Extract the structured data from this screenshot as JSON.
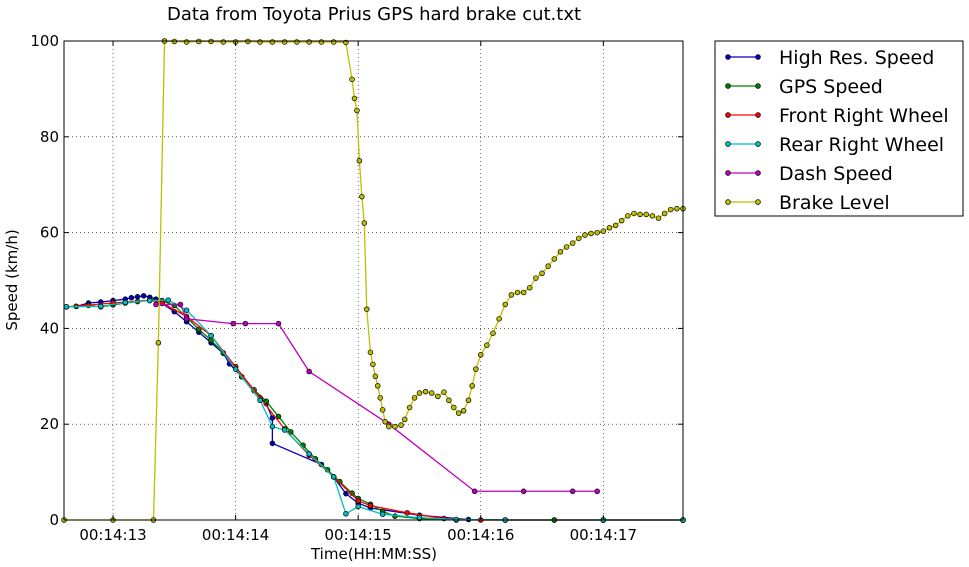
{
  "chart_data": {
    "type": "line",
    "title": "Data from Toyota Prius GPS hard brake cut.txt",
    "xlabel": "Time(HH:MM:SS)",
    "ylabel": "Speed (km/h)",
    "x_offset_label": "00:14:",
    "xlim": [
      12.6,
      17.65
    ],
    "ylim": [
      0,
      100
    ],
    "xticks": [
      13,
      14,
      15,
      16,
      17
    ],
    "xtick_labels": [
      "00:14:13",
      "00:14:14",
      "00:14:15",
      "00:14:16",
      "00:14:17"
    ],
    "yticks": [
      0,
      20,
      40,
      60,
      80,
      100
    ],
    "ytick_labels": [
      "0",
      "20",
      "40",
      "60",
      "80",
      "100"
    ],
    "grid": true,
    "legend_position": "outside-right",
    "series": [
      {
        "name": "High Res. Speed",
        "color": "#0000bf",
        "points": [
          [
            12.7,
            44.6
          ],
          [
            12.8,
            45.3
          ],
          [
            12.9,
            45.5
          ],
          [
            13.0,
            45.8
          ],
          [
            13.1,
            46.1
          ],
          [
            13.15,
            46.4
          ],
          [
            13.2,
            46.6
          ],
          [
            13.25,
            46.8
          ],
          [
            13.3,
            46.5
          ],
          [
            13.35,
            46.1
          ],
          [
            13.4,
            45.2
          ],
          [
            13.5,
            43.5
          ],
          [
            13.6,
            41.4
          ],
          [
            13.7,
            39.2
          ],
          [
            13.8,
            37.0
          ],
          [
            13.9,
            34.8
          ],
          [
            13.95,
            32.6
          ],
          [
            14.05,
            29.9
          ],
          [
            14.15,
            27.0
          ],
          [
            14.25,
            24.3
          ],
          [
            14.3,
            21.3
          ],
          [
            14.3,
            16.0
          ],
          [
            14.7,
            11.6
          ],
          [
            14.8,
            9.0
          ],
          [
            14.9,
            5.5
          ],
          [
            15.0,
            3.5
          ],
          [
            15.1,
            2.5
          ],
          [
            15.5,
            1.0
          ],
          [
            15.9,
            0.1
          ],
          [
            16.2,
            0.0
          ],
          [
            16.6,
            0.0
          ],
          [
            17.0,
            0.0
          ],
          [
            17.65,
            0.0
          ]
        ]
      },
      {
        "name": "GPS Speed",
        "color": "#008000",
        "points": [
          [
            12.62,
            44.5
          ],
          [
            12.7,
            44.6
          ],
          [
            12.8,
            44.8
          ],
          [
            12.9,
            44.5
          ],
          [
            13.0,
            44.9
          ],
          [
            13.1,
            45.3
          ],
          [
            13.2,
            45.6
          ],
          [
            13.3,
            45.9
          ],
          [
            13.4,
            45.8
          ],
          [
            13.5,
            44.8
          ],
          [
            13.6,
            42.3
          ],
          [
            13.7,
            39.8
          ],
          [
            13.8,
            37.5
          ],
          [
            13.9,
            34.9
          ],
          [
            14.0,
            32.0
          ],
          [
            14.05,
            29.9
          ],
          [
            14.15,
            27.2
          ],
          [
            14.25,
            24.8
          ],
          [
            14.35,
            21.6
          ],
          [
            14.45,
            18.4
          ],
          [
            14.55,
            15.6
          ],
          [
            14.65,
            12.8
          ],
          [
            14.75,
            10.5
          ],
          [
            14.85,
            8.0
          ],
          [
            14.95,
            5.6
          ],
          [
            15.0,
            4.5
          ],
          [
            15.1,
            3.3
          ],
          [
            15.2,
            1.8
          ],
          [
            15.3,
            0.8
          ],
          [
            15.5,
            0.3
          ],
          [
            15.8,
            0.0
          ],
          [
            16.2,
            0.0
          ],
          [
            16.6,
            0.0
          ],
          [
            17.0,
            0.0
          ],
          [
            17.65,
            0.0
          ]
        ]
      },
      {
        "name": "Front Right Wheel",
        "color": "#ff0000",
        "points": [
          [
            12.62,
            44.5
          ],
          [
            13.0,
            45.3
          ],
          [
            13.3,
            45.9
          ],
          [
            13.4,
            45.3
          ],
          [
            13.6,
            42.5
          ],
          [
            13.8,
            38.5
          ],
          [
            14.0,
            32.0
          ],
          [
            14.2,
            25.5
          ],
          [
            14.4,
            19.0
          ],
          [
            14.6,
            13.5
          ],
          [
            14.8,
            9.0
          ],
          [
            15.0,
            4.0
          ],
          [
            15.1,
            3.0
          ],
          [
            15.4,
            1.5
          ],
          [
            15.7,
            0.3
          ],
          [
            16.0,
            0.0
          ],
          [
            17.0,
            0.0
          ],
          [
            17.65,
            0.0
          ]
        ]
      },
      {
        "name": "Rear Right Wheel",
        "color": "#00bfbf",
        "points": [
          [
            12.62,
            44.5
          ],
          [
            12.9,
            44.6
          ],
          [
            13.1,
            45.4
          ],
          [
            13.3,
            45.8
          ],
          [
            13.45,
            45.9
          ],
          [
            13.6,
            43.8
          ],
          [
            13.8,
            38.5
          ],
          [
            14.0,
            31.5
          ],
          [
            14.2,
            25.0
          ],
          [
            14.3,
            19.5
          ],
          [
            14.4,
            18.8
          ],
          [
            14.6,
            13.8
          ],
          [
            14.8,
            9.0
          ],
          [
            14.9,
            1.3
          ],
          [
            15.0,
            2.8
          ],
          [
            15.2,
            1.2
          ],
          [
            15.5,
            0.5
          ],
          [
            15.8,
            0.1
          ],
          [
            16.2,
            0.0
          ],
          [
            17.0,
            0.0
          ],
          [
            17.65,
            0.0
          ]
        ]
      },
      {
        "name": "Dash Speed",
        "color": "#bf00bf",
        "points": [
          [
            13.35,
            45.0
          ],
          [
            13.55,
            45.0
          ],
          [
            13.6,
            42.0
          ],
          [
            13.98,
            41.0
          ],
          [
            14.08,
            41.0
          ],
          [
            14.35,
            41.0
          ],
          [
            14.6,
            31.0
          ],
          [
            15.25,
            20.0
          ],
          [
            15.95,
            6.0
          ],
          [
            16.35,
            6.0
          ],
          [
            16.75,
            6.0
          ],
          [
            16.95,
            6.0
          ]
        ]
      },
      {
        "name": "Brake Level",
        "color": "#bfbf00",
        "points": [
          [
            12.6,
            0.0
          ],
          [
            13.0,
            0.0
          ],
          [
            13.33,
            0.0
          ],
          [
            13.37,
            37.0
          ],
          [
            13.42,
            100.0
          ],
          [
            13.5,
            99.9
          ],
          [
            13.6,
            99.8
          ],
          [
            13.7,
            99.9
          ],
          [
            13.8,
            99.9
          ],
          [
            13.9,
            99.8
          ],
          [
            14.0,
            99.8
          ],
          [
            14.1,
            99.9
          ],
          [
            14.2,
            99.8
          ],
          [
            14.3,
            99.8
          ],
          [
            14.4,
            99.8
          ],
          [
            14.5,
            99.8
          ],
          [
            14.6,
            99.8
          ],
          [
            14.7,
            99.8
          ],
          [
            14.8,
            99.8
          ],
          [
            14.9,
            99.7
          ],
          [
            14.95,
            92.0
          ],
          [
            14.97,
            88.0
          ],
          [
            14.99,
            85.5
          ],
          [
            15.01,
            75.0
          ],
          [
            15.03,
            67.5
          ],
          [
            15.05,
            62.0
          ],
          [
            15.07,
            44.0
          ],
          [
            15.1,
            35.0
          ],
          [
            15.12,
            32.5
          ],
          [
            15.14,
            30.0
          ],
          [
            15.16,
            28.0
          ],
          [
            15.18,
            25.5
          ],
          [
            15.2,
            23.0
          ],
          [
            15.22,
            20.5
          ],
          [
            15.25,
            19.5
          ],
          [
            15.3,
            19.5
          ],
          [
            15.35,
            19.8
          ],
          [
            15.38,
            21.0
          ],
          [
            15.42,
            23.5
          ],
          [
            15.46,
            25.5
          ],
          [
            15.5,
            26.5
          ],
          [
            15.55,
            26.8
          ],
          [
            15.6,
            26.5
          ],
          [
            15.65,
            25.8
          ],
          [
            15.7,
            26.7
          ],
          [
            15.74,
            25.0
          ],
          [
            15.78,
            23.5
          ],
          [
            15.82,
            22.3
          ],
          [
            15.86,
            22.8
          ],
          [
            15.9,
            25.0
          ],
          [
            15.93,
            28.0
          ],
          [
            15.96,
            31.5
          ],
          [
            16.0,
            34.5
          ],
          [
            16.05,
            36.5
          ],
          [
            16.1,
            39.0
          ],
          [
            16.15,
            42.0
          ],
          [
            16.2,
            45.0
          ],
          [
            16.25,
            47.0
          ],
          [
            16.3,
            47.5
          ],
          [
            16.35,
            47.5
          ],
          [
            16.4,
            48.5
          ],
          [
            16.45,
            50.5
          ],
          [
            16.5,
            51.5
          ],
          [
            16.55,
            53.0
          ],
          [
            16.6,
            54.5
          ],
          [
            16.65,
            56.0
          ],
          [
            16.7,
            57.0
          ],
          [
            16.75,
            57.8
          ],
          [
            16.8,
            58.8
          ],
          [
            16.85,
            59.5
          ],
          [
            16.9,
            59.8
          ],
          [
            16.95,
            60.0
          ],
          [
            17.0,
            60.3
          ],
          [
            17.05,
            61.0
          ],
          [
            17.1,
            61.5
          ],
          [
            17.15,
            62.5
          ],
          [
            17.2,
            63.5
          ],
          [
            17.25,
            64.0
          ],
          [
            17.3,
            63.8
          ],
          [
            17.35,
            63.8
          ],
          [
            17.4,
            63.5
          ],
          [
            17.45,
            63.0
          ],
          [
            17.5,
            64.0
          ],
          [
            17.55,
            64.8
          ],
          [
            17.6,
            65.0
          ],
          [
            17.65,
            65.0
          ]
        ]
      }
    ]
  }
}
